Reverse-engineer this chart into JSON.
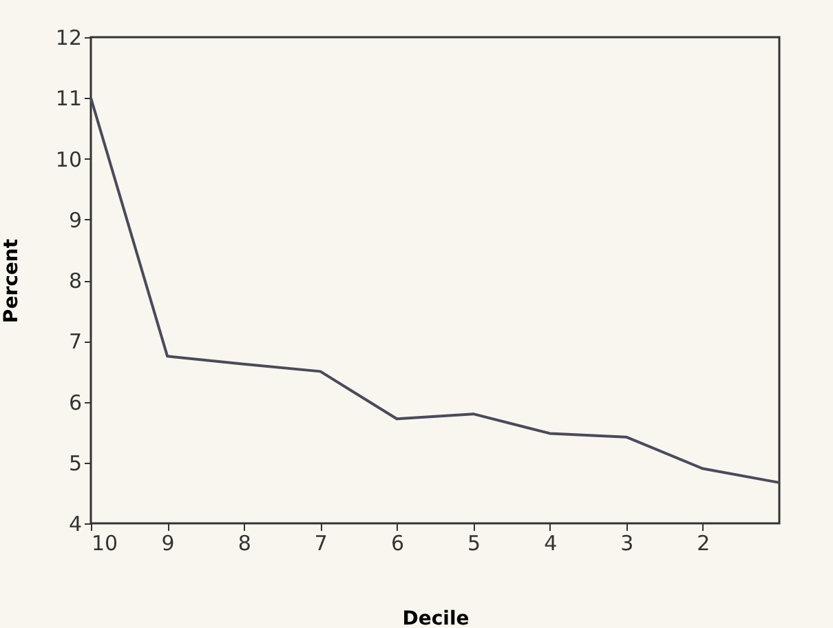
{
  "chart_data": {
    "type": "line",
    "xlabel": "Decile",
    "ylabel": "Percent",
    "x": [
      10,
      9,
      8,
      7,
      6,
      5,
      4,
      3,
      2,
      1
    ],
    "series": [
      {
        "color": "#4a4a5c",
        "values": [
          11.0,
          6.75,
          6.62,
          6.5,
          5.72,
          5.8,
          5.48,
          5.42,
          4.9,
          4.67
        ]
      }
    ],
    "xlim": [
      10,
      1
    ],
    "xticks": [
      10,
      9,
      8,
      7,
      6,
      5,
      4,
      3,
      2
    ],
    "ylim": [
      4,
      12
    ],
    "yticks": [
      4,
      5,
      6,
      7,
      8,
      9,
      10,
      11,
      12
    ],
    "grid": false,
    "legend": false,
    "marker": "none",
    "line_style": "solid"
  }
}
